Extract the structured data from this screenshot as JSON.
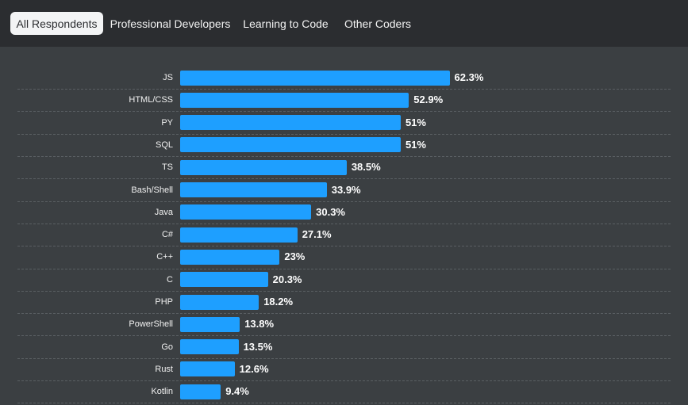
{
  "tabs": [
    {
      "label": "All Respondents",
      "active": true
    },
    {
      "label": "Professional Developers",
      "active": false
    },
    {
      "label": "Learning to Code",
      "active": false
    },
    {
      "label": "Other Coders",
      "active": false
    }
  ],
  "colors": {
    "bar": "#1e9fff",
    "background": "#3b3f42",
    "tabbar": "#2b2d30",
    "active_tab": "#f3f4f5"
  },
  "chart_data": {
    "type": "bar",
    "orientation": "horizontal",
    "title": "",
    "xlabel": "",
    "ylabel": "",
    "xlim": [
      0,
      100
    ],
    "grid": false,
    "categories": [
      "JS",
      "HTML/CSS",
      "PY",
      "SQL",
      "TS",
      "Bash/Shell",
      "Java",
      "C#",
      "C++",
      "C",
      "PHP",
      "PowerShell",
      "Go",
      "Rust",
      "Kotlin"
    ],
    "values": [
      62.3,
      52.9,
      51,
      51,
      38.5,
      33.9,
      30.3,
      27.1,
      23,
      20.3,
      18.2,
      13.8,
      13.5,
      12.6,
      9.4
    ],
    "labels": [
      "62.3%",
      "52.9%",
      "51%",
      "51%",
      "38.5%",
      "33.9%",
      "30.3%",
      "27.1%",
      "23%",
      "20.3%",
      "18.2%",
      "13.8%",
      "13.5%",
      "12.6%",
      "9.4%"
    ]
  }
}
